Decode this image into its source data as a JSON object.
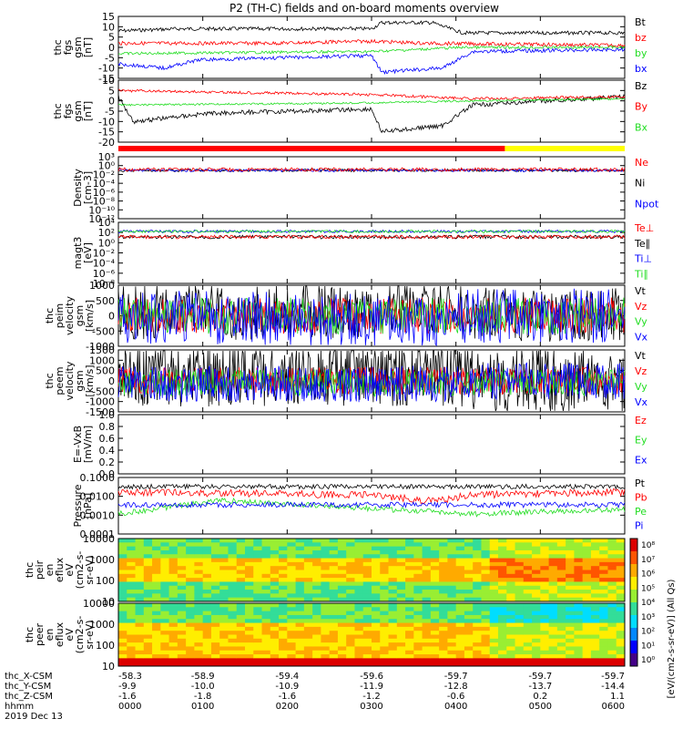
{
  "title": "P2 (TH-C) fields and on-board moments overview",
  "colors": {
    "black": "#000000",
    "red": "#ff0000",
    "green": "#22dd22",
    "blue": "#0000ff",
    "yellow": "#ffff00"
  },
  "chart_data": {
    "type": "line",
    "panels": [
      {
        "id": "p1",
        "ylabel_lines": [
          "thc",
          "fgs",
          "gsm",
          "[nT]"
        ],
        "ylim": [
          -15,
          15
        ],
        "ticks": [
          15,
          10,
          5,
          0,
          -5,
          -10,
          -15
        ],
        "legend": [
          {
            "name": "Bt",
            "color": "#000000"
          },
          {
            "name": "bz",
            "color": "#ff0000"
          },
          {
            "name": "by",
            "color": "#22dd22"
          },
          {
            "name": "bx",
            "color": "#0000ff"
          }
        ]
      },
      {
        "id": "p2",
        "ylabel_lines": [
          "thc",
          "fgs",
          "gsm",
          "[nT]"
        ],
        "ylim": [
          -20,
          10
        ],
        "ticks": [
          10,
          5,
          0,
          -5,
          -10,
          -15,
          -20
        ],
        "legend": [
          {
            "name": "Bz",
            "color": "#000000"
          },
          {
            "name": "By",
            "color": "#ff0000"
          },
          {
            "name": "Bx",
            "color": "#22dd22"
          }
        ]
      },
      {
        "id": "p3",
        "ylabel_lines": [
          "Density",
          "[cm-3]"
        ],
        "ylim_log": [
          -12,
          3
        ],
        "ticks": [
          "10³",
          "10⁰",
          "10⁻²",
          "10⁻⁴",
          "10⁻⁶",
          "10⁻⁸",
          "10⁻¹⁰",
          "10⁻¹²"
        ],
        "legend": [
          {
            "name": "Ne",
            "color": "#ff0000"
          },
          {
            "name": "Ni",
            "color": "#000000"
          },
          {
            "name": "Npot",
            "color": "#0000ff"
          }
        ]
      },
      {
        "id": "p4",
        "ylabel_lines": [
          "magt3",
          "[eV]"
        ],
        "ticks": [
          "10⁴",
          "10²",
          "10⁰",
          "10⁻²",
          "10⁻⁴",
          "10⁻⁶",
          "10⁻⁸"
        ],
        "legend": [
          {
            "name": "Te⊥",
            "color": "#ff0000"
          },
          {
            "name": "Te∥",
            "color": "#000000"
          },
          {
            "name": "Ti⊥",
            "color": "#0000ff"
          },
          {
            "name": "Ti∥",
            "color": "#22dd22"
          }
        ]
      },
      {
        "id": "p5",
        "ylabel_lines": [
          "thc",
          "peim",
          "velocity",
          "gsm",
          "[km/s]"
        ],
        "ylim": [
          -1000,
          1000
        ],
        "ticks": [
          1000,
          500,
          0,
          -500,
          -1000
        ],
        "legend": [
          {
            "name": "Vt",
            "color": "#000000"
          },
          {
            "name": "Vz",
            "color": "#ff0000"
          },
          {
            "name": "Vy",
            "color": "#22dd22"
          },
          {
            "name": "Vx",
            "color": "#0000ff"
          }
        ]
      },
      {
        "id": "p6",
        "ylabel_lines": [
          "thc",
          "peem",
          "velocity",
          "gsm",
          "[km/s]"
        ],
        "ylim": [
          -1500,
          1500
        ],
        "ticks": [
          1500,
          1000,
          500,
          0,
          -500,
          -1000,
          -1500
        ],
        "legend": [
          {
            "name": "Vt",
            "color": "#000000"
          },
          {
            "name": "Vz",
            "color": "#ff0000"
          },
          {
            "name": "Vy",
            "color": "#22dd22"
          },
          {
            "name": "Vx",
            "color": "#0000ff"
          }
        ]
      },
      {
        "id": "p7",
        "ylabel_lines": [
          "E=-VxB",
          "[mV/m]"
        ],
        "ylim": [
          0,
          1
        ],
        "ticks": [
          "1.0",
          "0.8",
          "0.6",
          "0.4",
          "0.2",
          "0.0"
        ],
        "legend": [
          {
            "name": "Ez",
            "color": "#ff0000"
          },
          {
            "name": "Ey",
            "color": "#22dd22"
          },
          {
            "name": "Ex",
            "color": "#0000ff"
          }
        ]
      },
      {
        "id": "p8",
        "ylabel_lines": [
          "Pressure",
          "[nPa]"
        ],
        "ticks": [
          "0.1000",
          "0.0100",
          "0.0010",
          "0.0001"
        ],
        "legend": [
          {
            "name": "Pt",
            "color": "#000000"
          },
          {
            "name": "Pb",
            "color": "#ff0000"
          },
          {
            "name": "Pe",
            "color": "#22dd22"
          },
          {
            "name": "Pi",
            "color": "#0000ff"
          }
        ]
      },
      {
        "id": "p9",
        "ylabel_lines": [
          "thc",
          "peir",
          "en",
          "eflux",
          "eV",
          "(cm2-s-",
          "sr-eV)"
        ],
        "ticks": [
          "10000",
          "1000",
          "100",
          "10"
        ]
      },
      {
        "id": "p10",
        "ylabel_lines": [
          "thc",
          "peer",
          "en",
          "eflux",
          "eV",
          "(cm2-s-",
          "sr-eV)"
        ],
        "ticks": [
          "10000",
          "1000",
          "100",
          "10"
        ]
      }
    ],
    "colorbar": {
      "label": "[eV/(cm2-s-sr-eV)] (All Qs)",
      "ticks": [
        "10⁸",
        "10⁷",
        "10⁶",
        "10⁵",
        "10⁴",
        "10³",
        "10²",
        "10¹",
        "10⁰"
      ]
    },
    "mode_bar": {
      "segments": [
        {
          "from": "0000",
          "to": "0435",
          "color": "#ff0000"
        },
        {
          "from": "0435",
          "to": "0600",
          "color": "#ffff00"
        }
      ]
    },
    "x": {
      "labels": [
        "hhmm",
        "2019 Dec 13"
      ],
      "rows": [
        {
          "name": "thc_X-CSM",
          "values": [
            "-58.3",
            "-58.9",
            "-59.4",
            "-59.6",
            "-59.7",
            "-59.7",
            "-59.7"
          ]
        },
        {
          "name": "thc_Y-CSM",
          "values": [
            "-9.9",
            "-10.0",
            "-10.9",
            "-11.9",
            "-12.8",
            "-13.7",
            "-14.4"
          ]
        },
        {
          "name": "thc_Z-CSM",
          "values": [
            "-1.6",
            "-1.8",
            "-1.6",
            "-1.2",
            "-0.6",
            "0.2",
            "1.1"
          ]
        },
        {
          "name": "hhmm",
          "values": [
            "0000",
            "0100",
            "0200",
            "0300",
            "0400",
            "0500",
            "0600"
          ]
        }
      ]
    }
  }
}
